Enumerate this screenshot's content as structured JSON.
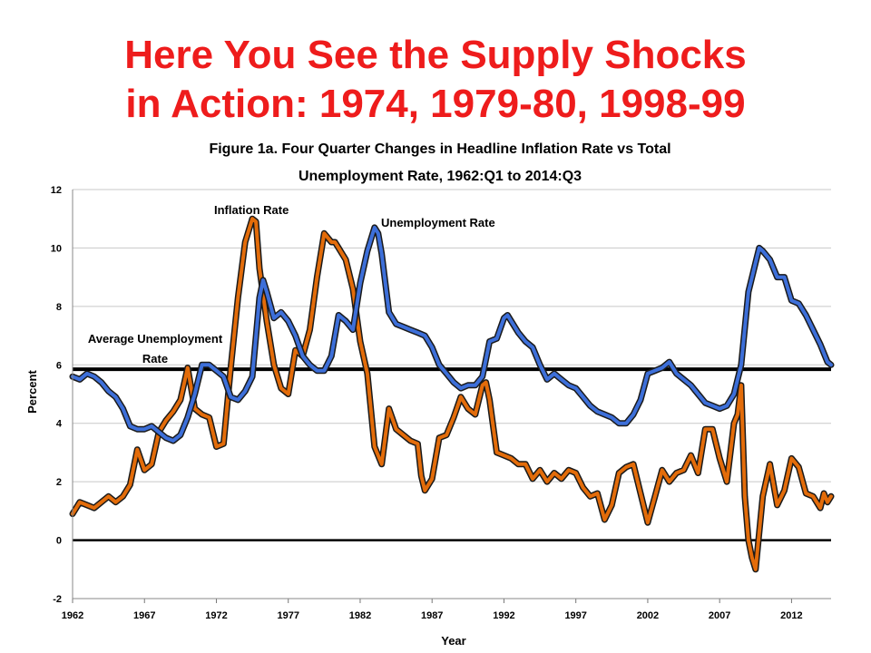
{
  "slide": {
    "title_line1": "Here You See the Supply Shocks",
    "title_line2": "in Action:  1974, 1979-80, 1998-99"
  },
  "colors": {
    "title": "#ee1c1c",
    "inflation": "#e36c0a",
    "unemployment": "#3d6fd9",
    "series_outline": "#1a1a1a",
    "grid": "#c8c8c8"
  },
  "chart_data": {
    "type": "line",
    "title": "Figure 1a. Four Quarter Changes in Headline Inflation Rate vs Total Unemployment Rate, 1962:Q1 to 2014:Q3",
    "title_line1": "Figure 1a. Four Quarter Changes in Headline Inflation Rate vs Total",
    "title_line2": "Unemployment Rate, 1962:Q1 to 2014:Q3",
    "xlabel": "Year",
    "ylabel": "Percent",
    "xlim": [
      1962,
      2014.75
    ],
    "ylim": [
      -2,
      12
    ],
    "x_ticks": [
      1962,
      1967,
      1972,
      1977,
      1982,
      1987,
      1992,
      1997,
      2002,
      2007,
      2012
    ],
    "y_ticks": [
      -2,
      0,
      2,
      4,
      6,
      8,
      10,
      12
    ],
    "grid": "horizontal",
    "reference_lines": [
      {
        "name": "Average Unemployment Rate",
        "y": 5.85
      },
      {
        "name": "Zero",
        "y": 0
      }
    ],
    "annotations": {
      "inflation": "Inflation Rate",
      "unemployment": "Unemployment Rate",
      "average_line1": "Average Unemployment",
      "average_line2": "Rate"
    },
    "series": [
      {
        "name": "Inflation Rate",
        "x": [
          1962.0,
          1962.5,
          1963.0,
          1963.5,
          1964.0,
          1964.5,
          1965.0,
          1965.5,
          1966.0,
          1966.5,
          1967.0,
          1967.5,
          1968.0,
          1968.5,
          1969.0,
          1969.5,
          1970.0,
          1970.5,
          1971.0,
          1971.5,
          1972.0,
          1972.5,
          1973.0,
          1973.5,
          1974.0,
          1974.5,
          1974.75,
          1975.0,
          1975.5,
          1976.0,
          1976.5,
          1977.0,
          1977.5,
          1978.0,
          1978.5,
          1979.0,
          1979.5,
          1980.0,
          1980.25,
          1980.5,
          1981.0,
          1981.5,
          1982.0,
          1982.5,
          1983.0,
          1983.5,
          1984.0,
          1984.5,
          1985.0,
          1985.5,
          1986.0,
          1986.25,
          1986.5,
          1987.0,
          1987.5,
          1988.0,
          1988.5,
          1989.0,
          1989.5,
          1990.0,
          1990.5,
          1990.75,
          1991.0,
          1991.5,
          1992.0,
          1992.5,
          1993.0,
          1993.5,
          1994.0,
          1994.5,
          1995.0,
          1995.5,
          1996.0,
          1996.5,
          1997.0,
          1997.5,
          1998.0,
          1998.5,
          1999.0,
          1999.5,
          2000.0,
          2000.5,
          2001.0,
          2001.5,
          2002.0,
          2002.5,
          2003.0,
          2003.5,
          2004.0,
          2004.5,
          2005.0,
          2005.5,
          2006.0,
          2006.5,
          2007.0,
          2007.5,
          2008.0,
          2008.25,
          2008.5,
          2008.75,
          2009.0,
          2009.25,
          2009.5,
          2010.0,
          2010.5,
          2011.0,
          2011.5,
          2012.0,
          2012.5,
          2013.0,
          2013.5,
          2014.0,
          2014.25,
          2014.5,
          2014.75
        ],
        "values": [
          0.9,
          1.3,
          1.2,
          1.1,
          1.3,
          1.5,
          1.3,
          1.5,
          1.9,
          3.1,
          2.4,
          2.6,
          3.7,
          4.1,
          4.4,
          4.8,
          5.9,
          4.5,
          4.3,
          4.2,
          3.2,
          3.3,
          5.9,
          8.3,
          10.2,
          11.0,
          10.9,
          9.3,
          7.5,
          6.0,
          5.2,
          5.0,
          6.5,
          6.3,
          7.2,
          9.0,
          10.5,
          10.2,
          10.2,
          10.0,
          9.6,
          8.6,
          6.8,
          5.7,
          3.2,
          2.6,
          4.5,
          3.8,
          3.6,
          3.4,
          3.3,
          2.2,
          1.7,
          2.1,
          3.5,
          3.6,
          4.2,
          4.9,
          4.5,
          4.3,
          5.3,
          5.4,
          4.8,
          3.0,
          2.9,
          2.8,
          2.6,
          2.6,
          2.1,
          2.4,
          2.0,
          2.3,
          2.1,
          2.4,
          2.3,
          1.8,
          1.5,
          1.6,
          0.7,
          1.2,
          2.3,
          2.5,
          2.6,
          1.6,
          0.6,
          1.5,
          2.4,
          2.0,
          2.3,
          2.4,
          2.9,
          2.3,
          3.8,
          3.8,
          2.8,
          2.0,
          4.0,
          4.3,
          5.3,
          1.5,
          0.0,
          -0.6,
          -1.0,
          1.5,
          2.6,
          1.2,
          1.7,
          2.8,
          2.5,
          1.6,
          1.5,
          1.1,
          1.6,
          1.3,
          1.5
        ]
      },
      {
        "name": "Unemployment Rate",
        "x": [
          1962.0,
          1962.5,
          1963.0,
          1963.5,
          1964.0,
          1964.5,
          1965.0,
          1965.5,
          1966.0,
          1966.5,
          1967.0,
          1967.5,
          1968.0,
          1968.5,
          1969.0,
          1969.5,
          1970.0,
          1970.5,
          1971.0,
          1971.5,
          1972.0,
          1972.5,
          1973.0,
          1973.5,
          1974.0,
          1974.5,
          1975.0,
          1975.25,
          1975.5,
          1976.0,
          1976.5,
          1977.0,
          1977.5,
          1978.0,
          1978.5,
          1979.0,
          1979.5,
          1980.0,
          1980.5,
          1981.0,
          1981.5,
          1982.0,
          1982.5,
          1983.0,
          1983.25,
          1983.5,
          1984.0,
          1984.5,
          1985.0,
          1985.5,
          1986.0,
          1986.5,
          1987.0,
          1987.5,
          1988.0,
          1988.5,
          1989.0,
          1989.5,
          1990.0,
          1990.5,
          1991.0,
          1991.5,
          1992.0,
          1992.25,
          1992.5,
          1993.0,
          1993.5,
          1994.0,
          1994.5,
          1995.0,
          1995.5,
          1996.0,
          1996.5,
          1997.0,
          1997.5,
          1998.0,
          1998.5,
          1999.0,
          1999.5,
          2000.0,
          2000.5,
          2001.0,
          2001.5,
          2002.0,
          2002.5,
          2003.0,
          2003.5,
          2004.0,
          2004.5,
          2005.0,
          2005.5,
          2006.0,
          2006.5,
          2007.0,
          2007.5,
          2008.0,
          2008.5,
          2009.0,
          2009.5,
          2009.75,
          2010.0,
          2010.5,
          2011.0,
          2011.5,
          2012.0,
          2012.5,
          2013.0,
          2013.5,
          2014.0,
          2014.5,
          2014.75
        ],
        "values": [
          5.6,
          5.5,
          5.7,
          5.6,
          5.4,
          5.1,
          4.9,
          4.5,
          3.9,
          3.8,
          3.8,
          3.9,
          3.7,
          3.5,
          3.4,
          3.6,
          4.2,
          5.0,
          6.0,
          6.0,
          5.8,
          5.6,
          4.9,
          4.8,
          5.1,
          5.6,
          8.3,
          8.9,
          8.5,
          7.6,
          7.8,
          7.5,
          7.0,
          6.3,
          6.0,
          5.8,
          5.8,
          6.3,
          7.7,
          7.5,
          7.2,
          8.8,
          9.9,
          10.7,
          10.5,
          9.8,
          7.8,
          7.4,
          7.3,
          7.2,
          7.1,
          7.0,
          6.6,
          6.0,
          5.7,
          5.4,
          5.2,
          5.3,
          5.3,
          5.6,
          6.8,
          6.9,
          7.6,
          7.7,
          7.5,
          7.1,
          6.8,
          6.6,
          6.0,
          5.5,
          5.7,
          5.5,
          5.3,
          5.2,
          4.9,
          4.6,
          4.4,
          4.3,
          4.2,
          4.0,
          4.0,
          4.3,
          4.8,
          5.7,
          5.8,
          5.9,
          6.1,
          5.7,
          5.5,
          5.3,
          5.0,
          4.7,
          4.6,
          4.5,
          4.6,
          5.0,
          6.0,
          8.5,
          9.5,
          10.0,
          9.9,
          9.6,
          9.0,
          9.0,
          8.2,
          8.1,
          7.7,
          7.2,
          6.7,
          6.1,
          6.0
        ]
      }
    ]
  }
}
